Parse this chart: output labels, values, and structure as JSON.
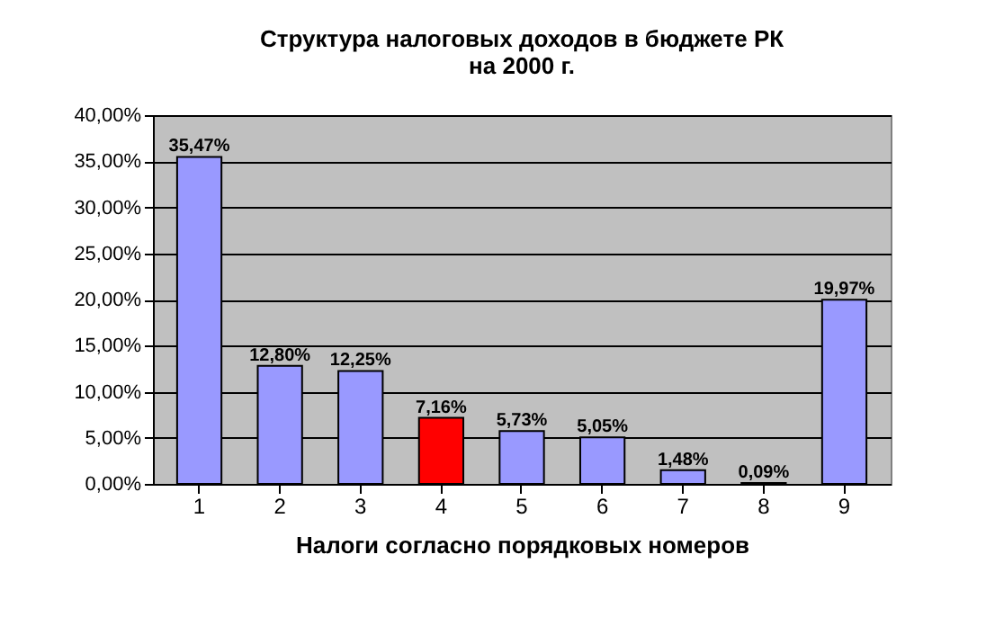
{
  "chart_data": {
    "type": "bar",
    "title": "Структура налоговых доходов в бюджете РК\nна 2000 г.",
    "xlabel": "Налоги согласно порядковых номеров",
    "categories": [
      "1",
      "2",
      "3",
      "4",
      "5",
      "6",
      "7",
      "8",
      "9"
    ],
    "values": [
      35.47,
      12.8,
      12.25,
      7.16,
      5.73,
      5.05,
      1.48,
      0.09,
      19.97
    ],
    "colors": [
      "#9999ff",
      "#9999ff",
      "#9999ff",
      "#ff0000",
      "#9999ff",
      "#9999ff",
      "#9999ff",
      "#9999ff",
      "#9999ff"
    ],
    "value_labels": [
      "35,47%",
      "12,80%",
      "12,25%",
      "7,16%",
      "5,73%",
      "5,05%",
      "1,48%",
      "0,09%",
      "19,97%"
    ],
    "ylim": [
      0,
      40
    ],
    "yticks": [
      {
        "value": 0,
        "label": "0,00%"
      },
      {
        "value": 5,
        "label": "5,00%"
      },
      {
        "value": 10,
        "label": "10,00%"
      },
      {
        "value": 15,
        "label": "15,00%"
      },
      {
        "value": 20,
        "label": "20,00%"
      },
      {
        "value": 25,
        "label": "25,00%"
      },
      {
        "value": 30,
        "label": "30,00%"
      },
      {
        "value": 35,
        "label": "35,00%"
      },
      {
        "value": 40,
        "label": "40,00%"
      }
    ],
    "grid": true
  }
}
